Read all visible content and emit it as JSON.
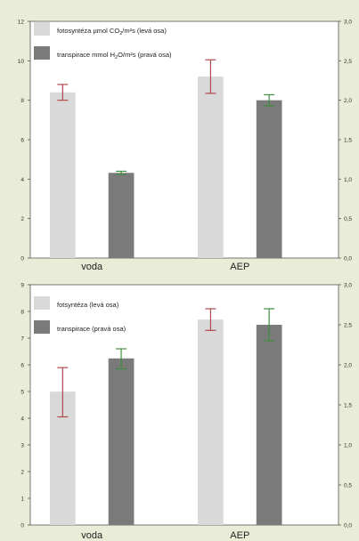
{
  "colors": {
    "background": "#e9ecd6",
    "plot_bg": "#ffffff",
    "bar_light": "#d9d9d9",
    "bar_dark": "#7a7a7a",
    "error_light": "#b0484c",
    "error_dark": "#3e8f3e",
    "axis": "#555555"
  },
  "chart_data": [
    {
      "type": "bar",
      "categories": [
        "voda",
        "AEP"
      ],
      "legend": [
        {
          "prefix": "fotosyntéza µmol CO",
          "sub": "2",
          "suffix": "/m²s (levá osa)"
        },
        {
          "prefix": "transpirace mmol H",
          "sub": "2",
          "suffix": "O/m²s (pravá osa)"
        }
      ],
      "y_left": {
        "range": [
          0,
          12
        ],
        "ticks": [
          "0",
          "2",
          "4",
          "6",
          "8",
          "10",
          "12"
        ]
      },
      "y_right": {
        "range": [
          0,
          3
        ],
        "ticks": [
          "0,0",
          "0,5",
          "1,0",
          "1,5",
          "2,0",
          "2,5",
          "3,0"
        ]
      },
      "grid": false,
      "legend_position": "top-left",
      "series": [
        {
          "axis": "left",
          "values": [
            8.4,
            9.2
          ],
          "err_low": [
            8.0,
            8.35
          ],
          "err_high": [
            8.8,
            10.05
          ]
        },
        {
          "axis": "right",
          "values": [
            1.08,
            2.0
          ],
          "err_low": [
            1.06,
            1.93
          ],
          "err_high": [
            1.1,
            2.07
          ]
        }
      ]
    },
    {
      "type": "bar",
      "categories": [
        "voda",
        "AEP"
      ],
      "legend": [
        {
          "prefix": "fotsyntéza (levá osa)",
          "sub": "",
          "suffix": ""
        },
        {
          "prefix": "transpirace (pravá osa)",
          "sub": "",
          "suffix": ""
        }
      ],
      "y_left": {
        "range": [
          0,
          10
        ],
        "ticks": [
          "0",
          "1",
          "2",
          "3",
          "4",
          "5",
          "6",
          "7",
          "8",
          "9"
        ]
      },
      "y_right": {
        "range": [
          0,
          3
        ],
        "ticks": [
          "0,0",
          "0,5",
          "1,0",
          "1,5",
          "2,0",
          "2,5",
          "3,0"
        ]
      },
      "grid": false,
      "legend_position": "top-left",
      "series": [
        {
          "axis": "left",
          "values": [
            5.55,
            8.55
          ],
          "err_low": [
            4.5,
            8.1
          ],
          "err_high": [
            6.55,
            9.0
          ]
        },
        {
          "axis": "right",
          "values": [
            2.08,
            2.5
          ],
          "err_low": [
            1.95,
            2.3
          ],
          "err_high": [
            2.2,
            2.7
          ]
        }
      ]
    }
  ]
}
